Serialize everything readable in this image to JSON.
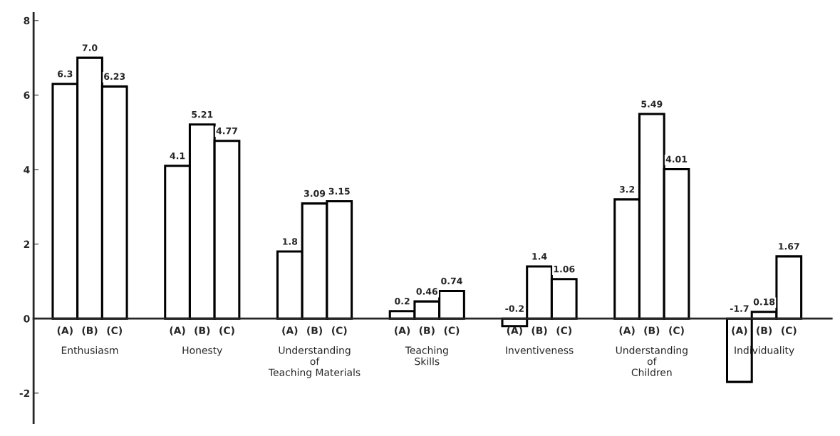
{
  "chart_data": {
    "type": "bar",
    "categories": [
      "Enthusiasm",
      "Honesty",
      "Understanding\nof\nTeaching Materials",
      "Teaching\nSkills",
      "Inventiveness",
      "Understanding\nof\nChildren",
      "Individuality"
    ],
    "series": [
      {
        "name": "(A)",
        "color": "#ffffff",
        "values": [
          6.3,
          4.1,
          1.8,
          0.2,
          -0.2,
          3.2,
          -1.7
        ],
        "value_labels": [
          "6.3",
          "4.1",
          "1.8",
          "0.2",
          "-0.2",
          "3.2",
          "-1.7"
        ]
      },
      {
        "name": "(B)",
        "color": "#ffffff",
        "values": [
          7.0,
          5.21,
          3.09,
          0.46,
          1.4,
          5.49,
          0.18
        ],
        "value_labels": [
          "7.0",
          "5.21",
          "3.09",
          "0.46",
          "1.4",
          "5.49",
          "0.18"
        ]
      },
      {
        "name": "(C)",
        "color": "#ffffff",
        "values": [
          6.23,
          4.77,
          3.15,
          0.74,
          1.06,
          4.01,
          1.67
        ],
        "value_labels": [
          "6.23",
          "4.77",
          "3.15",
          "0.74",
          "1.06",
          "4.01",
          "1.67"
        ]
      }
    ],
    "ylim": [
      -2.8,
      8.2
    ],
    "yticks": [
      -2,
      0,
      2,
      4,
      6,
      8
    ]
  }
}
